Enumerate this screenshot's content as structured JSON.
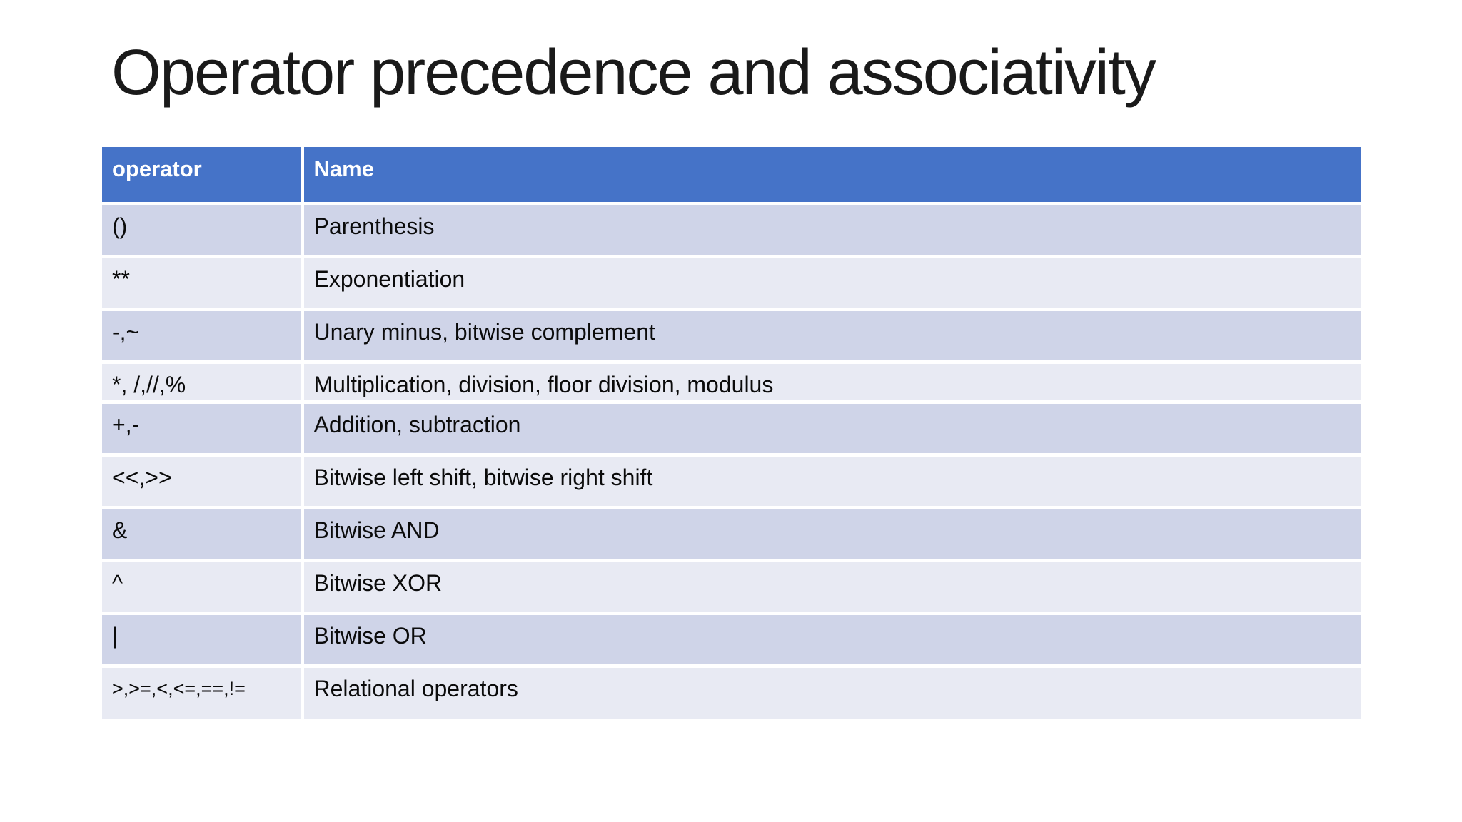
{
  "slide": {
    "title": "Operator precedence and associativity"
  },
  "table": {
    "columns": [
      "operator",
      "Name"
    ],
    "rows": [
      {
        "operator": "()",
        "name": "Parenthesis"
      },
      {
        "operator": "**",
        "name": "Exponentiation"
      },
      {
        "operator": "-,~",
        "name": "Unary minus, bitwise complement"
      },
      {
        "operator": "*, /,//,%",
        "name": "Multiplication, division, floor division, modulus"
      },
      {
        "operator": "+,-",
        "name": "Addition, subtraction"
      },
      {
        "operator": "<<,>>",
        "name": "Bitwise left shift, bitwise right shift"
      },
      {
        "operator": "&",
        "name": "Bitwise AND"
      },
      {
        "operator": "^",
        "name": "Bitwise XOR"
      },
      {
        "operator": "|",
        "name": "Bitwise OR"
      },
      {
        "operator": ">,>=,<,<=,==,!=",
        "name": "Relational operators"
      }
    ],
    "colors": {
      "header_bg": "#4573C8",
      "header_text": "#FFFFFF",
      "band_dark": "#CFD4E8",
      "band_light": "#E8EAF3"
    }
  }
}
